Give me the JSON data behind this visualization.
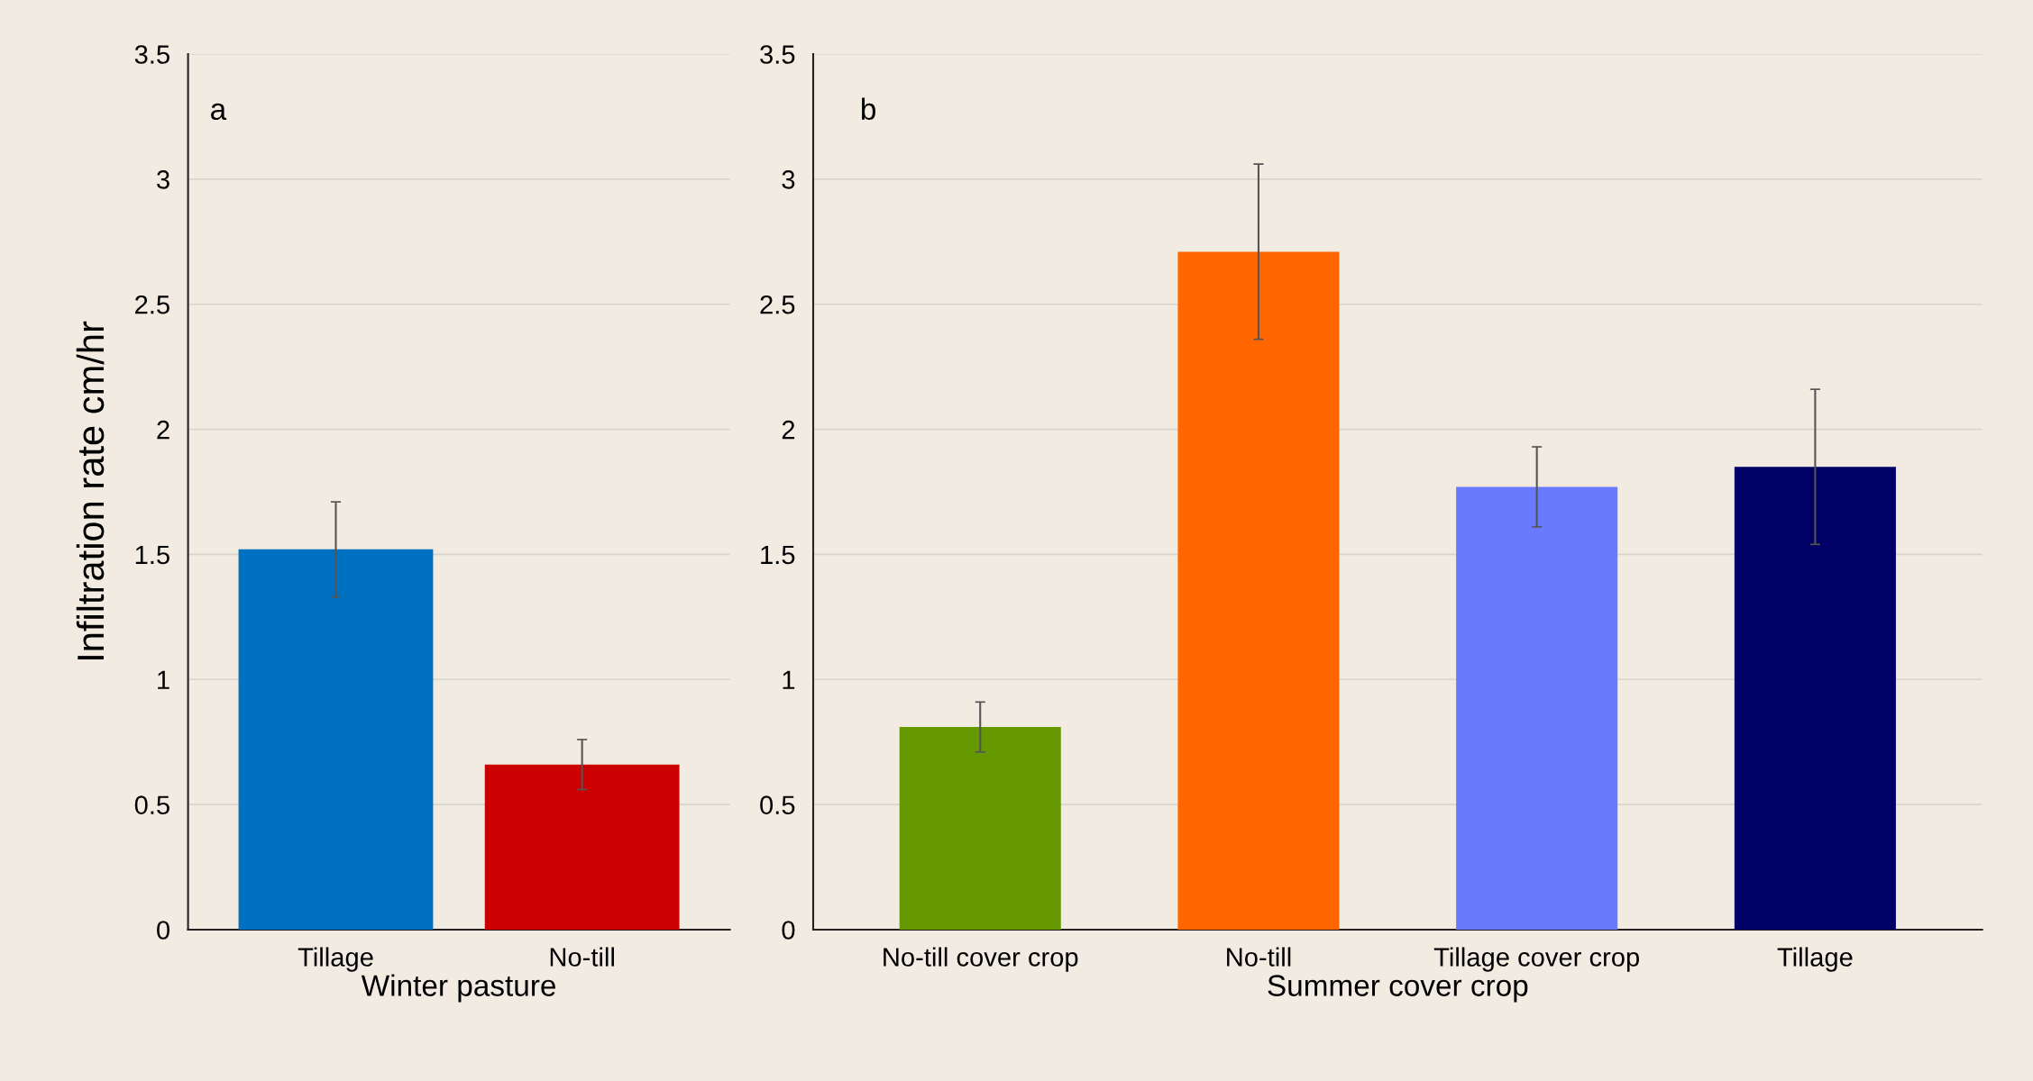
{
  "chart_data": [
    {
      "type": "bar",
      "xlabel": "Winter pasture",
      "ylabel": "Infiltration rate cm/hr",
      "categories": [
        "Tillage",
        "No-till"
      ],
      "values": [
        1.52,
        0.66
      ],
      "colors": [
        "#0070c0",
        "#cc0000"
      ],
      "errors": [
        0.19,
        0.1
      ],
      "ylim": [
        0,
        3.5
      ],
      "yticks": [
        0,
        0.5,
        1,
        1.5,
        2,
        2.5,
        3,
        3.5
      ],
      "grid": "y",
      "annotations": [
        "a"
      ]
    },
    {
      "type": "bar",
      "xlabel": "Summer cover crop",
      "categories": [
        "No-till cover crop",
        "No-till",
        "Tillage cover crop",
        "Tillage"
      ],
      "values": [
        0.81,
        2.71,
        1.77,
        1.85
      ],
      "colors": [
        "#669900",
        "#ff6600",
        "#6a7aff",
        "#000066"
      ],
      "errors": [
        0.1,
        0.35,
        0.16,
        0.31
      ],
      "ylim": [
        0,
        3.5
      ],
      "yticks": [
        0,
        0.5,
        1,
        1.5,
        2,
        2.5,
        3,
        3.5
      ],
      "grid": "y",
      "annotations": [
        "b"
      ]
    }
  ]
}
